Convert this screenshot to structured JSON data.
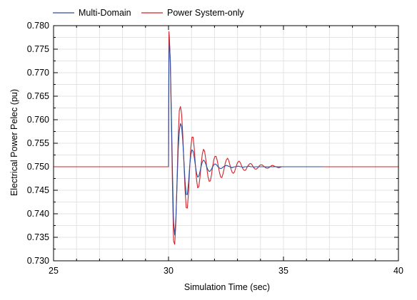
{
  "chart_data": {
    "type": "line",
    "title": "",
    "xlabel": "Simulation Time (sec)",
    "ylabel": "Electrical Power Pelec (pu)",
    "xlim": [
      25,
      40
    ],
    "ylim": [
      0.73,
      0.78
    ],
    "xticks": [
      25,
      30,
      35,
      40
    ],
    "xtick_labels": [
      "25",
      "30",
      "35",
      "40"
    ],
    "yticks": [
      0.73,
      0.735,
      0.74,
      0.745,
      0.75,
      0.755,
      0.76,
      0.765,
      0.77,
      0.775,
      0.78
    ],
    "ytick_labels": [
      "0.730",
      "0.735",
      "0.740",
      "0.745",
      "0.750",
      "0.755",
      "0.760",
      "0.765",
      "0.770",
      "0.775",
      "0.780"
    ],
    "grid": true,
    "legend_position": "top-left",
    "series": [
      {
        "name": "Multi-Domain",
        "color": "#2e4f9e",
        "x": [
          30.0,
          30.02,
          30.04,
          30.08,
          30.12,
          30.17,
          30.22,
          30.27,
          30.32,
          30.37,
          30.42,
          30.47,
          30.52,
          30.57,
          30.62,
          30.67,
          30.72,
          30.77,
          30.82,
          30.87,
          30.92,
          30.97,
          31.02,
          31.07,
          31.12,
          31.17,
          31.22,
          31.27,
          31.32,
          31.37,
          31.42,
          31.47,
          31.52,
          31.57,
          31.62,
          31.67,
          31.72,
          31.77,
          31.82,
          31.87,
          31.92,
          31.97,
          32.02,
          32.07,
          32.12,
          32.17,
          32.22,
          32.27,
          32.32,
          32.37,
          32.42,
          32.47,
          32.52,
          32.57,
          32.62,
          32.67,
          32.72,
          32.77,
          32.82,
          32.87,
          32.92,
          32.97,
          33.02,
          33.07,
          33.12,
          33.17,
          33.22,
          33.27,
          33.32,
          33.37,
          33.42,
          33.47,
          33.52,
          33.57,
          33.62,
          33.67,
          33.72,
          33.77,
          33.82,
          33.87,
          33.92,
          33.97,
          34.02,
          34.07,
          34.12,
          34.17,
          34.22,
          34.27,
          34.32,
          34.37,
          34.42,
          34.47,
          34.52,
          34.57,
          34.62,
          34.67,
          34.72,
          34.77,
          34.82,
          34.87,
          34.92,
          34.97,
          35.02,
          35.07,
          35.12,
          35.17,
          35.22,
          35.27,
          35.32,
          35.37,
          35.42,
          35.47,
          35.52,
          35.57,
          35.62,
          35.67,
          35.72,
          35.77,
          35.82,
          35.87,
          35.92,
          35.97,
          36.02,
          36.07,
          36.12,
          36.17,
          36.22,
          36.27,
          36.32,
          36.37,
          36.42,
          36.47,
          36.52,
          36.57,
          36.62,
          36.67
        ],
        "y": [
          0.75,
          0.7742,
          0.7764,
          0.7725,
          0.7627,
          0.7495,
          0.7382,
          0.7355,
          0.7389,
          0.746,
          0.7535,
          0.7576,
          0.7592,
          0.7585,
          0.7555,
          0.7512,
          0.7469,
          0.7441,
          0.7441,
          0.7466,
          0.7501,
          0.7526,
          0.7536,
          0.7533,
          0.752,
          0.7502,
          0.7486,
          0.7478,
          0.748,
          0.749,
          0.7501,
          0.751,
          0.7514,
          0.7512,
          0.7506,
          0.7499,
          0.7493,
          0.749,
          0.7491,
          0.7495,
          0.75,
          0.7504,
          0.7506,
          0.7505,
          0.7502,
          0.7499,
          0.7497,
          0.7496,
          0.7497,
          0.7499,
          0.7501,
          0.7502,
          0.7503,
          0.7502,
          0.7501,
          0.75,
          0.7499,
          0.7498,
          0.7499,
          0.75,
          0.75,
          0.7501,
          0.7501,
          0.7501,
          0.75,
          0.75,
          0.7499,
          0.7499,
          0.75,
          0.75,
          0.75,
          0.7501,
          0.7501,
          0.75,
          0.75,
          0.75,
          0.7499,
          0.75,
          0.75,
          0.75,
          0.75,
          0.75,
          0.75,
          0.75,
          0.75,
          0.75,
          0.75,
          0.75,
          0.75,
          0.75,
          0.75,
          0.75,
          0.75,
          0.75,
          0.75,
          0.75,
          0.75,
          0.75,
          0.75,
          0.75,
          0.75,
          0.75,
          0.75,
          0.75,
          0.75,
          0.75,
          0.75,
          0.75,
          0.75,
          0.75,
          0.75,
          0.75,
          0.75,
          0.75,
          0.75,
          0.75,
          0.75,
          0.75,
          0.75,
          0.75,
          0.75,
          0.75,
          0.75,
          0.75,
          0.75,
          0.75,
          0.75,
          0.75,
          0.75,
          0.75,
          0.75,
          0.75,
          0.75,
          0.75,
          0.75,
          0.75
        ]
      },
      {
        "name": "Power System-only",
        "color": "#d2232a",
        "x": [
          25.0,
          29.98,
          30.0,
          30.02,
          30.04,
          30.08,
          30.12,
          30.17,
          30.22,
          30.27,
          30.32,
          30.37,
          30.42,
          30.47,
          30.52,
          30.57,
          30.62,
          30.67,
          30.72,
          30.77,
          30.82,
          30.87,
          30.92,
          30.97,
          31.02,
          31.07,
          31.12,
          31.17,
          31.22,
          31.27,
          31.32,
          31.37,
          31.42,
          31.47,
          31.52,
          31.57,
          31.62,
          31.67,
          31.72,
          31.77,
          31.82,
          31.87,
          31.92,
          31.97,
          32.02,
          32.07,
          32.12,
          32.17,
          32.22,
          32.27,
          32.32,
          32.37,
          32.42,
          32.47,
          32.52,
          32.57,
          32.62,
          32.67,
          32.72,
          32.77,
          32.82,
          32.87,
          32.92,
          32.97,
          33.02,
          33.07,
          33.12,
          33.17,
          33.22,
          33.27,
          33.32,
          33.37,
          33.42,
          33.47,
          33.52,
          33.57,
          33.62,
          33.67,
          33.72,
          33.77,
          33.82,
          33.87,
          33.92,
          33.97,
          34.02,
          34.07,
          34.12,
          34.17,
          34.22,
          34.27,
          34.32,
          34.37,
          34.42,
          34.47,
          34.52,
          34.57,
          34.62,
          34.67,
          34.72,
          34.77,
          34.82,
          34.87,
          34.92,
          34.97,
          35.0,
          40.0
        ],
        "y": [
          0.75,
          0.75,
          0.75,
          0.7787,
          0.7774,
          0.7717,
          0.7608,
          0.7464,
          0.7342,
          0.7335,
          0.7382,
          0.7469,
          0.7561,
          0.762,
          0.7628,
          0.7612,
          0.7568,
          0.7509,
          0.745,
          0.7413,
          0.7412,
          0.7445,
          0.7496,
          0.7541,
          0.7563,
          0.7563,
          0.7539,
          0.7504,
          0.7472,
          0.7455,
          0.7458,
          0.7478,
          0.7505,
          0.7527,
          0.7537,
          0.7533,
          0.7516,
          0.7495,
          0.7478,
          0.7469,
          0.747,
          0.7483,
          0.7501,
          0.7515,
          0.7522,
          0.7522,
          0.7513,
          0.75,
          0.7487,
          0.7478,
          0.7477,
          0.7485,
          0.7496,
          0.7508,
          0.7515,
          0.7518,
          0.7513,
          0.7504,
          0.7495,
          0.7488,
          0.7486,
          0.7489,
          0.7497,
          0.7505,
          0.751,
          0.7512,
          0.7509,
          0.7503,
          0.7497,
          0.7493,
          0.7492,
          0.7494,
          0.7499,
          0.7503,
          0.7506,
          0.7507,
          0.7505,
          0.7501,
          0.7497,
          0.7495,
          0.7495,
          0.7497,
          0.75,
          0.7503,
          0.7504,
          0.7504,
          0.7502,
          0.75,
          0.7498,
          0.7497,
          0.7497,
          0.7498,
          0.75,
          0.7502,
          0.7503,
          0.7502,
          0.7501,
          0.75,
          0.7499,
          0.7498,
          0.7498,
          0.7499,
          0.75,
          0.75,
          0.75,
          0.75
        ]
      }
    ]
  }
}
